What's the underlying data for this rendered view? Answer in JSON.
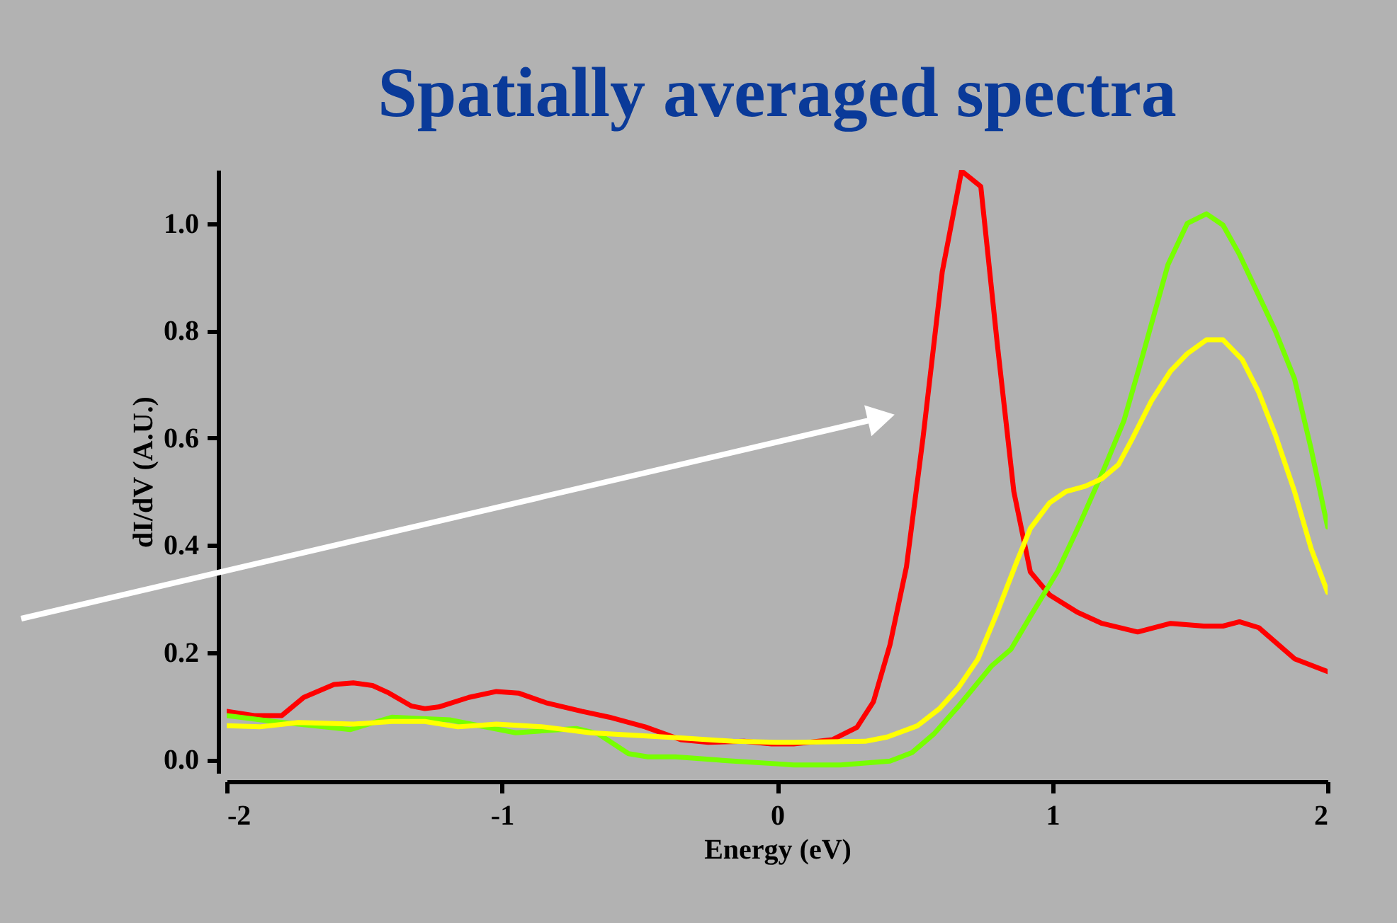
{
  "chart_data": {
    "type": "line",
    "title": "Spatially averaged spectra",
    "xlabel": "Energy (eV)",
    "ylabel": "dI/dV (A.U.)",
    "xlim": [
      -2,
      2
    ],
    "ylim": [
      -0.025,
      1.1
    ],
    "xticks": [
      -2,
      -1,
      0,
      1,
      2
    ],
    "yticks": [
      {
        "value": 0,
        "label": "0.0"
      },
      {
        "value": 0.2,
        "label": "0.2"
      },
      {
        "value": 0.4,
        "label": "0.4"
      },
      {
        "value": 0.6,
        "label": "0.6"
      },
      {
        "value": 0.8,
        "label": "0.8"
      },
      {
        "value": 1,
        "label": "1.0"
      }
    ],
    "grid": false,
    "legend": false,
    "marker": "none",
    "line_style": "solid",
    "series": [
      {
        "color": "#ff0000",
        "x": [
          -2.0,
          -1.9,
          -1.8,
          -1.72,
          -1.61,
          -1.54,
          -1.47,
          -1.41,
          -1.33,
          -1.28,
          -1.23,
          -1.12,
          -1.02,
          -0.94,
          -0.84,
          -0.71,
          -0.61,
          -0.48,
          -0.35,
          -0.25,
          -0.12,
          -0.02,
          0.06,
          0.2,
          0.29,
          0.35,
          0.41,
          0.47,
          0.53,
          0.6,
          0.67,
          0.74,
          0.8,
          0.86,
          0.92,
          0.99,
          1.09,
          1.18,
          1.31,
          1.43,
          1.55,
          1.62,
          1.68,
          1.75,
          1.88,
          2.0
        ],
        "values": [
          0.09,
          0.082,
          0.082,
          0.116,
          0.14,
          0.143,
          0.138,
          0.124,
          0.1,
          0.095,
          0.098,
          0.116,
          0.127,
          0.124,
          0.106,
          0.09,
          0.079,
          0.061,
          0.037,
          0.032,
          0.034,
          0.029,
          0.029,
          0.037,
          0.06,
          0.108,
          0.214,
          0.36,
          0.6,
          0.91,
          1.098,
          1.069,
          0.775,
          0.5,
          0.35,
          0.307,
          0.275,
          0.254,
          0.238,
          0.254,
          0.249,
          0.249,
          0.257,
          0.246,
          0.188,
          0.164
        ]
      },
      {
        "color": "#77ff00",
        "x": [
          -2.0,
          -1.83,
          -1.55,
          -1.4,
          -1.19,
          -0.95,
          -0.73,
          -0.65,
          -0.54,
          -0.47,
          -0.37,
          -0.16,
          0.0,
          0.06,
          0.23,
          0.41,
          0.49,
          0.57,
          0.66,
          0.78,
          0.85,
          0.92,
          1.02,
          1.1,
          1.19,
          1.26,
          1.33,
          1.42,
          1.49,
          1.56,
          1.62,
          1.68,
          1.81,
          1.88,
          1.94,
          2.0
        ],
        "values": [
          0.082,
          0.071,
          0.056,
          0.079,
          0.074,
          0.05,
          0.058,
          0.048,
          0.011,
          0.005,
          0.005,
          -0.003,
          -0.008,
          -0.01,
          -0.01,
          -0.003,
          0.013,
          0.048,
          0.1,
          0.175,
          0.206,
          0.267,
          0.352,
          0.44,
          0.545,
          0.632,
          0.757,
          0.923,
          1.0,
          1.018,
          0.997,
          0.942,
          0.8,
          0.71,
          0.58,
          0.434
        ]
      },
      {
        "color": "#ffff00",
        "x": [
          -2.0,
          -1.88,
          -1.74,
          -1.54,
          -1.4,
          -1.28,
          -1.16,
          -1.02,
          -0.85,
          -0.68,
          -0.51,
          -0.34,
          -0.16,
          0.0,
          0.06,
          0.32,
          0.4,
          0.51,
          0.59,
          0.66,
          0.73,
          0.8,
          0.87,
          0.92,
          0.99,
          1.05,
          1.12,
          1.18,
          1.24,
          1.29,
          1.36,
          1.43,
          1.49,
          1.56,
          1.62,
          1.69,
          1.75,
          1.81,
          1.88,
          1.94,
          2.0
        ],
        "values": [
          0.063,
          0.061,
          0.069,
          0.066,
          0.071,
          0.071,
          0.061,
          0.066,
          0.061,
          0.05,
          0.045,
          0.04,
          0.034,
          0.032,
          0.032,
          0.034,
          0.042,
          0.063,
          0.095,
          0.135,
          0.188,
          0.275,
          0.368,
          0.431,
          0.479,
          0.5,
          0.51,
          0.524,
          0.55,
          0.598,
          0.669,
          0.725,
          0.757,
          0.783,
          0.783,
          0.746,
          0.685,
          0.606,
          0.5,
          0.394,
          0.312
        ]
      }
    ]
  }
}
